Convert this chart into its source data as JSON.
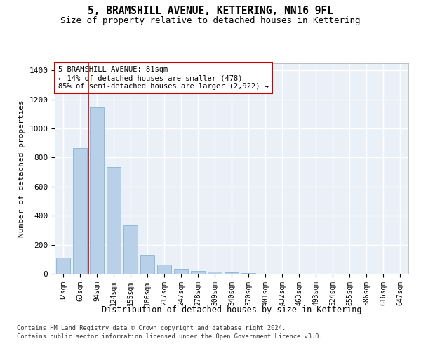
{
  "title": "5, BRAMSHILL AVENUE, KETTERING, NN16 9FL",
  "subtitle": "Size of property relative to detached houses in Kettering",
  "xlabel": "Distribution of detached houses by size in Kettering",
  "ylabel": "Number of detached properties",
  "categories": [
    "32sqm",
    "63sqm",
    "94sqm",
    "124sqm",
    "155sqm",
    "186sqm",
    "217sqm",
    "247sqm",
    "278sqm",
    "309sqm",
    "340sqm",
    "370sqm",
    "401sqm",
    "432sqm",
    "463sqm",
    "493sqm",
    "524sqm",
    "555sqm",
    "586sqm",
    "616sqm",
    "647sqm"
  ],
  "values": [
    110,
    865,
    1145,
    735,
    335,
    130,
    65,
    35,
    20,
    15,
    10,
    5,
    2,
    0,
    0,
    0,
    0,
    0,
    0,
    0,
    0
  ],
  "bar_color": "#b8d0e8",
  "bar_edgecolor": "#7aaacf",
  "vline_x_index": 1.5,
  "vline_color": "#cc0000",
  "annotation_line1": "5 BRAMSHILL AVENUE: 81sqm",
  "annotation_line2": "← 14% of detached houses are smaller (478)",
  "annotation_line3": "85% of semi-detached houses are larger (2,922) →",
  "annotation_box_color": "#ffffff",
  "annotation_box_edgecolor": "#cc0000",
  "ylim": [
    0,
    1450
  ],
  "yticks": [
    0,
    200,
    400,
    600,
    800,
    1000,
    1200,
    1400
  ],
  "bg_color": "#eaf0f8",
  "grid_color": "#ffffff",
  "footer1": "Contains HM Land Registry data © Crown copyright and database right 2024.",
  "footer2": "Contains public sector information licensed under the Open Government Licence v3.0."
}
